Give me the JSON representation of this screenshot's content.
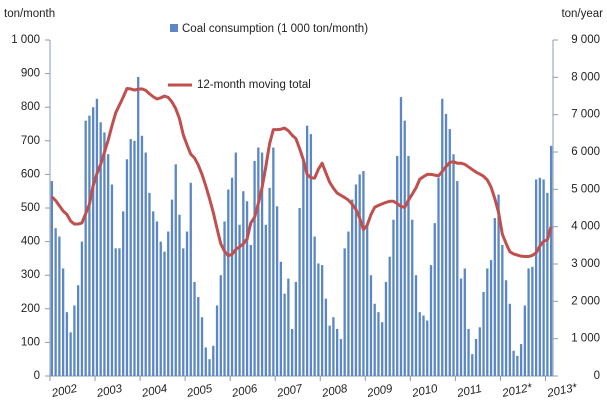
{
  "chart_data": {
    "type": "bar",
    "y_label": "ton/month",
    "y2_label": "ton/year",
    "categories": [
      "2002",
      null,
      null,
      null,
      null,
      null,
      null,
      null,
      null,
      null,
      null,
      null,
      "2003",
      null,
      null,
      null,
      null,
      null,
      null,
      null,
      null,
      null,
      null,
      null,
      "2004",
      null,
      null,
      null,
      null,
      null,
      null,
      null,
      null,
      null,
      null,
      null,
      "2005",
      null,
      null,
      null,
      null,
      null,
      null,
      null,
      null,
      null,
      null,
      null,
      "2006",
      null,
      null,
      null,
      null,
      null,
      null,
      null,
      null,
      null,
      null,
      null,
      "2007",
      null,
      null,
      null,
      null,
      null,
      null,
      null,
      null,
      null,
      null,
      null,
      "2008",
      null,
      null,
      null,
      null,
      null,
      null,
      null,
      null,
      null,
      null,
      null,
      "2009",
      null,
      null,
      null,
      null,
      null,
      null,
      null,
      null,
      null,
      null,
      null,
      "2010",
      null,
      null,
      null,
      null,
      null,
      null,
      null,
      null,
      null,
      null,
      null,
      "2011",
      null,
      null,
      null,
      null,
      null,
      null,
      null,
      null,
      null,
      null,
      null,
      "2012*",
      null,
      null,
      null,
      null,
      null,
      null,
      null,
      null,
      null,
      null,
      null,
      "2013*",
      null
    ],
    "series": [
      {
        "name": "Coal consumption (1 000 ton/month)",
        "type": "bar",
        "color": "#5b87c4",
        "values": [
          580,
          440,
          415,
          320,
          190,
          130,
          210,
          270,
          400,
          760,
          775,
          800,
          825,
          755,
          725,
          660,
          570,
          380,
          380,
          490,
          645,
          705,
          700,
          890,
          715,
          665,
          545,
          490,
          460,
          400,
          370,
          430,
          525,
          630,
          480,
          380,
          430,
          575,
          280,
          235,
          175,
          85,
          50,
          90,
          210,
          300,
          460,
          555,
          590,
          665,
          450,
          550,
          520,
          390,
          640,
          680,
          665,
          450,
          560,
          680,
          505,
          340,
          245,
          290,
          140,
          280,
          500,
          640,
          745,
          720,
          415,
          335,
          330,
          230,
          150,
          175,
          140,
          110,
          380,
          430,
          525,
          570,
          600,
          610,
          450,
          300,
          215,
          190,
          160,
          280,
          355,
          465,
          655,
          830,
          760,
          655,
          465,
          300,
          190,
          180,
          165,
          330,
          455,
          590,
          825,
          780,
          735,
          660,
          580,
          290,
          320,
          140,
          65,
          110,
          145,
          250,
          320,
          345,
          470,
          540,
          390,
          285,
          215,
          75,
          60,
          95,
          210,
          320,
          325,
          585,
          590,
          585,
          545,
          685
        ]
      },
      {
        "name": "12-month moving total",
        "type": "line",
        "axis": "y2",
        "color": "#c0504d",
        "values": [
          4800,
          4700,
          4560,
          4420,
          4330,
          4150,
          4070,
          4070,
          4100,
          4350,
          4600,
          5100,
          5420,
          5670,
          5990,
          6320,
          6700,
          7050,
          7260,
          7470,
          7700,
          7690,
          7660,
          7680,
          7690,
          7650,
          7560,
          7480,
          7420,
          7450,
          7500,
          7460,
          7340,
          7160,
          6890,
          6460,
          6190,
          5940,
          5840,
          5650,
          5400,
          5090,
          4750,
          4380,
          3950,
          3540,
          3340,
          3220,
          3260,
          3390,
          3460,
          3540,
          3670,
          4100,
          4250,
          4620,
          5050,
          5610,
          6220,
          6600,
          6600,
          6610,
          6640,
          6570,
          6450,
          6360,
          6090,
          5790,
          5400,
          5310,
          5300,
          5540,
          5700,
          5440,
          5190,
          5030,
          4900,
          4840,
          4780,
          4710,
          4600,
          4460,
          4230,
          3920,
          4040,
          4320,
          4520,
          4570,
          4610,
          4650,
          4680,
          4680,
          4620,
          4540,
          4520,
          4710,
          4870,
          5040,
          5270,
          5340,
          5400,
          5400,
          5380,
          5360,
          5480,
          5610,
          5720,
          5740,
          5700,
          5700,
          5670,
          5600,
          5530,
          5460,
          5410,
          5350,
          5250,
          5060,
          4750,
          4380,
          3800,
          3550,
          3330,
          3270,
          3240,
          3210,
          3200,
          3200,
          3230,
          3300,
          3480,
          3610,
          3650,
          4000
        ]
      }
    ],
    "ylim": [
      0,
      1000
    ],
    "yticks": [
      0,
      100,
      200,
      300,
      400,
      500,
      600,
      700,
      800,
      900,
      {
        "value": 1000,
        "label": "1 000"
      }
    ],
    "y2lim": [
      0,
      9000
    ],
    "y2ticks": [
      0,
      {
        "value": 1000,
        "label": "1 000"
      },
      {
        "value": 2000,
        "label": "2 000"
      },
      {
        "value": 3000,
        "label": "3 000"
      },
      {
        "value": 4000,
        "label": "4 000"
      },
      {
        "value": 5000,
        "label": "5 000"
      },
      {
        "value": 6000,
        "label": "6 000"
      },
      {
        "value": 7000,
        "label": "7 000"
      },
      {
        "value": 8000,
        "label": "8 000"
      },
      {
        "value": 9000,
        "label": "9 000"
      }
    ],
    "grid": false
  }
}
